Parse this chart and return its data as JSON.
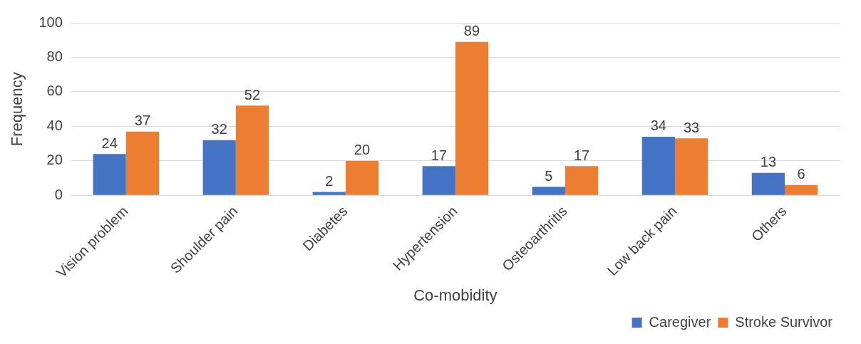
{
  "chart_data": {
    "type": "bar",
    "xlabel": "Co-mobidity",
    "ylabel": "Frequency",
    "categories": [
      "Vision problem",
      "Shoulder pain",
      "Diabetes",
      "Hypertension",
      "Osteoarthritis",
      "Low back pain",
      "Others"
    ],
    "series": [
      {
        "name": "Caregiver",
        "color": "#4472c4",
        "values": [
          24,
          32,
          2,
          17,
          5,
          34,
          13
        ]
      },
      {
        "name": "Stroke Survivor",
        "color": "#ed7d31",
        "values": [
          37,
          52,
          20,
          89,
          17,
          33,
          6
        ]
      }
    ],
    "ylim": [
      0,
      100
    ],
    "yticks": [
      0,
      20,
      40,
      60,
      80,
      100
    ],
    "grid": "y",
    "legend": "bottom right",
    "data_labels": true
  }
}
